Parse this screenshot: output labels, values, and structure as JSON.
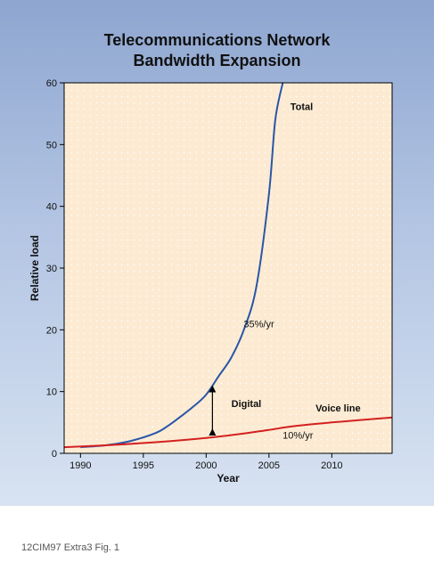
{
  "chart_data": {
    "type": "line",
    "title": [
      "Telecommunications Network",
      "Bandwidth Expansion"
    ],
    "xlabel": "Year",
    "ylabel": "Relative load",
    "xlim": [
      1988.7,
      2014.8
    ],
    "ylim": [
      0,
      60
    ],
    "xticks": [
      1990,
      1995,
      2000,
      2005,
      2010
    ],
    "yticks": [
      0,
      10,
      20,
      30,
      40,
      50,
      60
    ],
    "grid": "dotted",
    "series": [
      {
        "name": "Total",
        "color": "#2a56a8",
        "x": [
          1990,
          1992,
          1994,
          1996,
          1997,
          1998,
          1999,
          2000,
          2001,
          2002,
          2003,
          2004,
          2005,
          2005.5,
          2006.1
        ],
        "y": [
          1.0,
          1.3,
          2.0,
          3.3,
          4.5,
          6.0,
          7.6,
          9.5,
          12.5,
          15.5,
          20.0,
          27.0,
          42.0,
          54.0,
          60.0
        ]
      },
      {
        "name": "Voice line",
        "color": "#d42020",
        "x": [
          1988.7,
          1992,
          1996,
          2000,
          2003,
          2005,
          2007,
          2010,
          2014.8
        ],
        "y": [
          1.0,
          1.3,
          1.8,
          2.5,
          3.2,
          3.8,
          4.4,
          5.0,
          5.8
        ]
      }
    ],
    "annotations": [
      {
        "text": "Total",
        "x": 2007.6,
        "y": 55.6
      },
      {
        "text": "35%/yr",
        "x": 2004.2,
        "y": 20.4
      },
      {
        "text": "Digital",
        "x": 2003.2,
        "y": 7.5
      },
      {
        "text": "Voice line",
        "x": 2010.5,
        "y": 6.8
      },
      {
        "text": "10%/yr",
        "x": 2007.3,
        "y": 2.4
      }
    ],
    "arrow": {
      "x": 2000.5,
      "y_from": 2.6,
      "y_to": 11.3
    }
  },
  "caption": "12CIM97 Extra3 Fig. 1",
  "colors": {
    "plot_bg": "#fcebd2",
    "frame": "#000000"
  }
}
